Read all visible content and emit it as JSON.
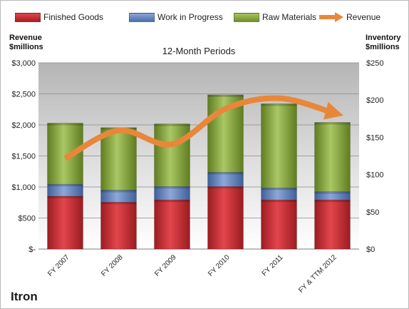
{
  "chart_data": {
    "type": "bar",
    "title": "12-Month Periods",
    "company": "Itron",
    "stacked": true,
    "categories": [
      "FY 2007",
      "FY 2008",
      "FY 2009",
      "FY 2010",
      "FY 2011",
      "FY & TTM 2012"
    ],
    "y_left": {
      "label": [
        "Revenue",
        "$millions"
      ],
      "ylim": [
        0,
        3000
      ],
      "ticks": [
        0,
        500,
        1000,
        1500,
        2000,
        2500,
        3000
      ],
      "tick_labels": [
        "$-",
        "$500",
        "$1,000",
        "$1,500",
        "$2,000",
        "$2,500",
        "$3,000"
      ]
    },
    "y_right": {
      "label": [
        "Inventory",
        "$millions"
      ],
      "ylim": [
        0,
        250
      ],
      "ticks": [
        0,
        50,
        100,
        150,
        200,
        250
      ],
      "tick_labels": [
        "$0",
        "$50",
        "$100",
        "$150",
        "$200",
        "$250"
      ]
    },
    "series": [
      {
        "name": "Finished Goods",
        "axis": "right",
        "color": "#c0272d",
        "values": [
          71,
          63,
          66,
          84,
          66,
          66
        ]
      },
      {
        "name": "Work in Progress",
        "axis": "right",
        "color": "#5b7db8",
        "values": [
          16,
          16,
          18,
          19,
          16,
          11
        ]
      },
      {
        "name": "Raw Materials",
        "axis": "right",
        "color": "#7d9d35",
        "values": [
          82,
          84,
          84,
          104,
          113,
          93
        ]
      },
      {
        "name": "Revenue",
        "axis": "left",
        "type": "line",
        "color": "#e8873a",
        "values": [
          1460,
          1910,
          1690,
          2260,
          2430,
          2200
        ]
      }
    ],
    "legend_position": "top",
    "grid": true
  }
}
